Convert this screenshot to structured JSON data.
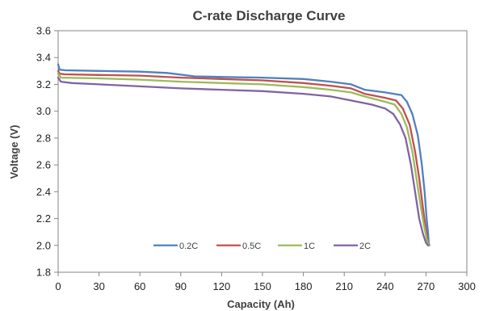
{
  "chart_data": {
    "type": "line",
    "title": "C-rate Discharge Curve",
    "xlabel": "Capacity (Ah)",
    "ylabel": "Voltage (V)",
    "xlim": [
      0,
      300
    ],
    "ylim": [
      1.8,
      3.6
    ],
    "xticks": [
      0,
      30,
      60,
      90,
      120,
      150,
      180,
      210,
      240,
      270,
      300
    ],
    "yticks": [
      1.8,
      2.0,
      2.2,
      2.4,
      2.6,
      2.8,
      3.0,
      3.2,
      3.4,
      3.6
    ],
    "xtick_labels": [
      "0",
      "30",
      "60",
      "90",
      "120",
      "150",
      "180",
      "210",
      "240",
      "270",
      "300"
    ],
    "ytick_labels": [
      "1.8",
      "2.0",
      "2.2",
      "2.4",
      "2.6",
      "2.8",
      "3.0",
      "3.2",
      "3.4",
      "3.6"
    ],
    "grid": false,
    "legend_position": "inside-bottom-center",
    "series": [
      {
        "name": "0.2C",
        "color": "#4f81bd",
        "x": [
          0,
          1,
          5,
          30,
          60,
          80,
          100,
          120,
          150,
          180,
          200,
          215,
          225,
          240,
          252,
          256,
          260,
          264,
          267,
          269,
          270.5,
          271.5,
          272,
          272.5
        ],
        "y": [
          3.35,
          3.31,
          3.305,
          3.3,
          3.295,
          3.285,
          3.26,
          3.255,
          3.25,
          3.24,
          3.22,
          3.2,
          3.16,
          3.14,
          3.12,
          3.07,
          2.98,
          2.82,
          2.6,
          2.4,
          2.2,
          2.1,
          2.02,
          2.0
        ]
      },
      {
        "name": "0.5C",
        "color": "#c0504d",
        "x": [
          0,
          1,
          5,
          30,
          60,
          90,
          120,
          150,
          180,
          200,
          215,
          225,
          240,
          248,
          253,
          258,
          262,
          265,
          267.5,
          269.5,
          271,
          272
        ],
        "y": [
          3.3,
          3.28,
          3.275,
          3.27,
          3.265,
          3.25,
          3.24,
          3.23,
          3.21,
          3.19,
          3.17,
          3.13,
          3.1,
          3.08,
          3.02,
          2.9,
          2.7,
          2.5,
          2.3,
          2.15,
          2.05,
          2.0
        ]
      },
      {
        "name": "1C",
        "color": "#9bbb59",
        "x": [
          0,
          2,
          30,
          60,
          90,
          120,
          150,
          180,
          200,
          215,
          225,
          240,
          247,
          252,
          256,
          260,
          263,
          266,
          268.5,
          270.5,
          272
        ],
        "y": [
          3.28,
          3.25,
          3.245,
          3.235,
          3.22,
          3.21,
          3.2,
          3.18,
          3.16,
          3.14,
          3.11,
          3.07,
          3.05,
          2.98,
          2.88,
          2.7,
          2.5,
          2.3,
          2.15,
          2.05,
          2.0
        ]
      },
      {
        "name": "2C",
        "color": "#8064a2",
        "x": [
          0,
          2,
          10,
          30,
          60,
          90,
          120,
          150,
          180,
          200,
          215,
          230,
          240,
          246,
          251,
          255,
          259,
          262,
          265,
          268,
          270,
          271.5
        ],
        "y": [
          3.25,
          3.22,
          3.21,
          3.2,
          3.185,
          3.17,
          3.16,
          3.15,
          3.13,
          3.11,
          3.08,
          3.05,
          3.02,
          2.98,
          2.9,
          2.8,
          2.6,
          2.4,
          2.2,
          2.08,
          2.02,
          2.0
        ]
      }
    ]
  }
}
